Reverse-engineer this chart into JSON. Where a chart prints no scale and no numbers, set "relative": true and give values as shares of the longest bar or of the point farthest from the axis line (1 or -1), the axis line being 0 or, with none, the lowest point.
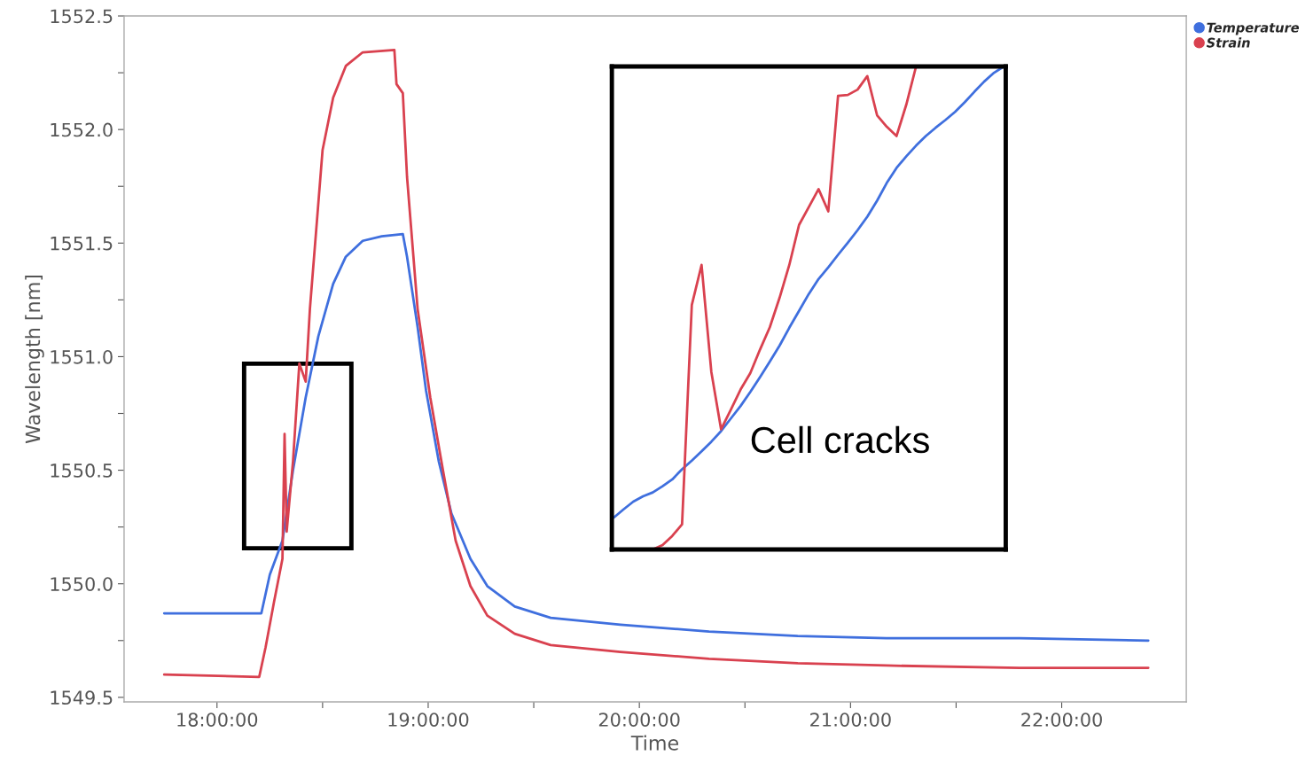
{
  "chart_data": [
    {
      "type": "line",
      "xlabel": "Time",
      "ylabel": "Wavelength [nm]",
      "xlim": [
        17.56,
        22.59
      ],
      "ylim": [
        1549.48,
        1552.5
      ],
      "xticks": [
        {
          "value": 18,
          "label": "18:00:00"
        },
        {
          "value": 18.5,
          "label": null
        },
        {
          "value": 19,
          "label": "19:00:00"
        },
        {
          "value": 19.5,
          "label": null
        },
        {
          "value": 20,
          "label": "20:00:00"
        },
        {
          "value": 20.5,
          "label": null
        },
        {
          "value": 21,
          "label": "21:00:00"
        },
        {
          "value": 21.5,
          "label": null
        },
        {
          "value": 22,
          "label": "22:00:00"
        }
      ],
      "yticks": [
        1549.5,
        {
          "value": 1549.75,
          "label": null
        },
        {
          "value": 1550,
          "label": "1550.0"
        },
        {
          "value": 1550.25,
          "label": null
        },
        1550.5,
        {
          "value": 1550.75,
          "label": null
        },
        {
          "value": 1551,
          "label": "1551.0"
        },
        {
          "value": 1551.25,
          "label": null
        },
        1551.5,
        {
          "value": 1551.75,
          "label": null
        },
        {
          "value": 1552,
          "label": "1552.0"
        },
        {
          "value": 1552.25,
          "label": null
        },
        1552.5
      ],
      "legend": "top right",
      "grid": false,
      "series": [
        {
          "name": "Temperature",
          "color": "#3f6fde",
          "x": [
            17.75,
            18.21,
            18.25,
            18.31,
            18.36,
            18.42,
            18.48,
            18.55,
            18.61,
            18.69,
            18.78,
            18.88,
            18.9,
            18.95,
            18.99,
            19.05,
            19.11,
            19.2,
            19.28,
            19.41,
            19.58,
            19.91,
            20.33,
            20.75,
            21.17,
            21.8,
            22.41
          ],
          "values": [
            1549.87,
            1549.87,
            1550.04,
            1550.19,
            1550.5,
            1550.82,
            1551.09,
            1551.32,
            1551.44,
            1551.51,
            1551.53,
            1551.54,
            1551.44,
            1551.13,
            1550.85,
            1550.54,
            1550.31,
            1550.11,
            1549.99,
            1549.9,
            1549.85,
            1549.82,
            1549.79,
            1549.77,
            1549.76,
            1549.76,
            1549.75
          ]
        },
        {
          "name": "Strain",
          "color": "#d9414f",
          "x": [
            17.75,
            18.2,
            18.23,
            18.27,
            18.31,
            18.32,
            18.33,
            18.36,
            18.39,
            18.42,
            18.44,
            18.47,
            18.5,
            18.55,
            18.61,
            18.69,
            18.84,
            18.85,
            18.88,
            18.9,
            18.95,
            19.01,
            19.07,
            19.13,
            19.2,
            19.28,
            19.41,
            19.58,
            19.91,
            20.33,
            20.75,
            21.17,
            21.8,
            22.41
          ],
          "values": [
            1549.6,
            1549.59,
            1549.72,
            1549.92,
            1550.11,
            1550.66,
            1550.23,
            1550.54,
            1550.97,
            1550.89,
            1551.21,
            1551.56,
            1551.91,
            1552.14,
            1552.28,
            1552.34,
            1552.35,
            1552.2,
            1552.16,
            1551.79,
            1551.21,
            1550.82,
            1550.5,
            1550.19,
            1549.99,
            1549.86,
            1549.78,
            1549.73,
            1549.7,
            1549.67,
            1549.65,
            1549.64,
            1549.63,
            1549.63
          ]
        }
      ]
    },
    {
      "type": "line",
      "relative": true,
      "annotations": [
        "Cell cracks"
      ],
      "categories": [
        null,
        null,
        null,
        null,
        null,
        null,
        null,
        null,
        null,
        null,
        null,
        null,
        null,
        null,
        null,
        null,
        null,
        null,
        null,
        null,
        null,
        null,
        null,
        null,
        null,
        null,
        null,
        null,
        null,
        null,
        null,
        null,
        null,
        null,
        null,
        null,
        null,
        null,
        null,
        null,
        null
      ],
      "series": [
        {
          "color": "#3f6fde",
          "values": [
            0.066,
            0.083,
            0.099,
            0.11,
            0.118,
            0.131,
            0.145,
            0.166,
            0.184,
            0.203,
            0.223,
            0.245,
            0.271,
            0.297,
            0.326,
            0.357,
            0.389,
            0.422,
            0.459,
            0.494,
            0.529,
            0.56,
            0.584,
            0.61,
            0.635,
            0.661,
            0.689,
            0.722,
            0.759,
            0.79,
            0.814,
            0.836,
            0.856,
            0.873,
            0.889,
            0.906,
            0.926,
            0.948,
            0.969,
            0.987,
            1.0
          ]
        },
        {
          "color": "#d9414f",
          "values": [
            null,
            null,
            null,
            null,
            0.0,
            0.009,
            0.028,
            0.052,
            0.506,
            0.589,
            0.368,
            0.249,
            0.289,
            0.331,
            0.365,
            0.414,
            0.46,
            0.521,
            0.589,
            0.672,
            0.709,
            0.746,
            0.7,
            0.939,
            0.941,
            0.952,
            0.98,
            0.899,
            0.875,
            0.856,
            0.921,
            1.0,
            null,
            null,
            null,
            null,
            null,
            null,
            null,
            null,
            null
          ]
        }
      ]
    }
  ]
}
